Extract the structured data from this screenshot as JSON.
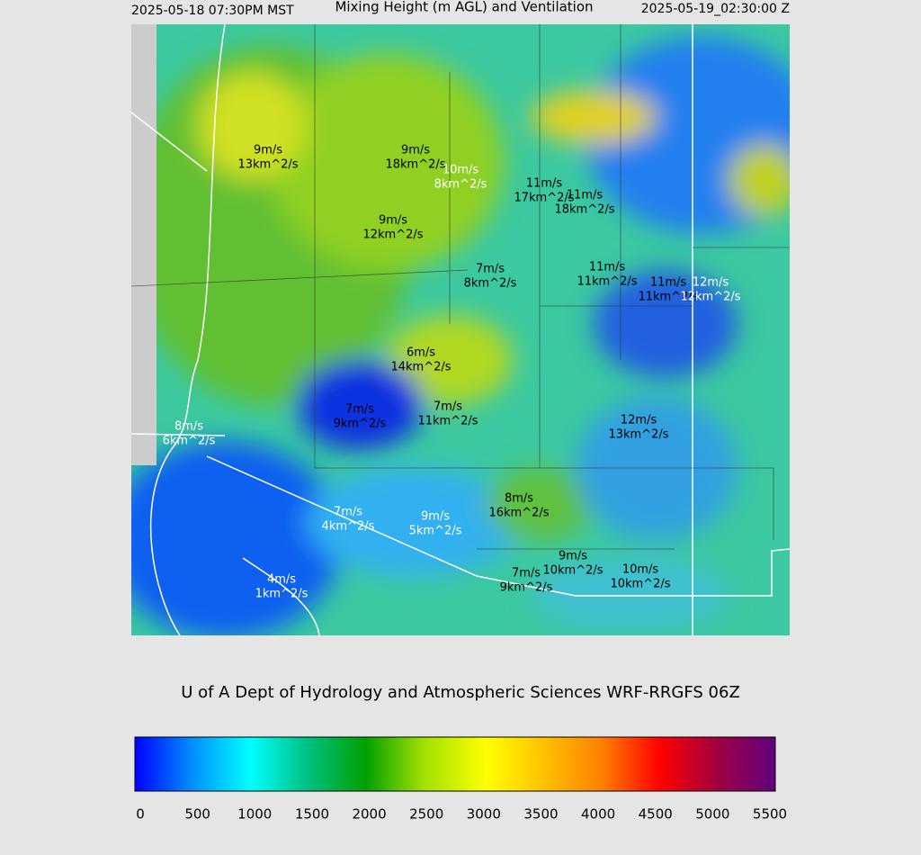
{
  "header": {
    "left": "2025-05-18 07:30PM MST",
    "title": "Mixing Height (m AGL) and Ventilation",
    "right": "2025-05-19_02:30:00 Z"
  },
  "map": {
    "labels": [
      {
        "wind": "9m/s",
        "vent": "13km^2/s"
      },
      {
        "wind": "9m/s",
        "vent": "18km^2/s"
      },
      {
        "wind": "10m/s",
        "vent": "8km^2/s"
      },
      {
        "wind": "11m/s",
        "vent": "17km^2/s"
      },
      {
        "wind": "11m/s",
        "vent": "18km^2/s"
      },
      {
        "wind": "9m/s",
        "vent": "12km^2/s"
      },
      {
        "wind": "7m/s",
        "vent": "8km^2/s"
      },
      {
        "wind": "11m/s",
        "vent": "11km^2/s"
      },
      {
        "wind": "11m/s",
        "vent": "11km^2/s"
      },
      {
        "wind": "12m/s",
        "vent": "12km^2/s"
      },
      {
        "wind": "6m/s",
        "vent": "14km^2/s"
      },
      {
        "wind": "7m/s",
        "vent": "9km^2/s"
      },
      {
        "wind": "7m/s",
        "vent": "11km^2/s"
      },
      {
        "wind": "8m/s",
        "vent": "6km^2/s"
      },
      {
        "wind": "12m/s",
        "vent": "13km^2/s"
      },
      {
        "wind": "8m/s",
        "vent": "16km^2/s"
      },
      {
        "wind": "7m/s",
        "vent": "4km^2/s"
      },
      {
        "wind": "9m/s",
        "vent": "5km^2/s"
      },
      {
        "wind": "9m/s",
        "vent": "10km^2/s"
      },
      {
        "wind": "7m/s",
        "vent": "9km^2/s"
      },
      {
        "wind": "10m/s",
        "vent": "10km^2/s"
      },
      {
        "wind": "4m/s",
        "vent": "1km^2/s"
      }
    ]
  },
  "footer": {
    "credit": "U of A Dept of Hydrology and Atmospheric Sciences WRF-RRGFS 06Z"
  },
  "colorbar": {
    "ticks": [
      0,
      500,
      1000,
      1500,
      2000,
      2500,
      3000,
      3500,
      4000,
      4500,
      5000,
      5500
    ]
  }
}
